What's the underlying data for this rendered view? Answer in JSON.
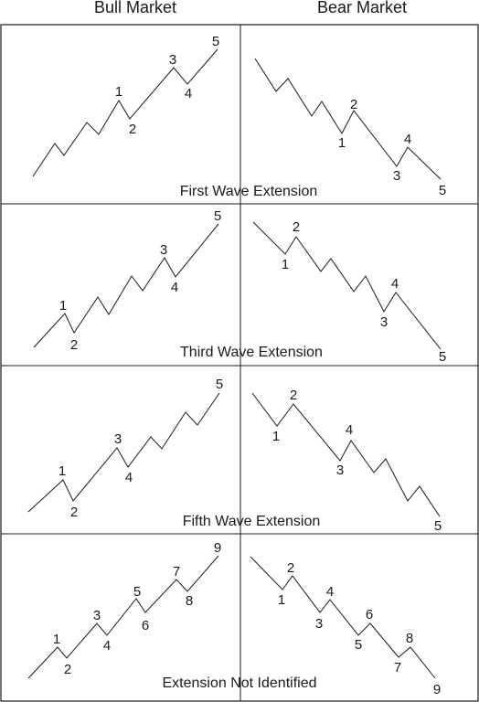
{
  "headers": {
    "bull": "Bull Market",
    "bear": "Bear Market"
  },
  "panels": [
    {
      "caption": "First Wave Extension",
      "bull_labels": [
        "1",
        "2",
        "3",
        "4",
        "5"
      ],
      "bear_labels": [
        "1",
        "2",
        "3",
        "4",
        "5"
      ]
    },
    {
      "caption": "Third Wave Extension",
      "bull_labels": [
        "1",
        "2",
        "3",
        "4",
        "5"
      ],
      "bear_labels": [
        "1",
        "2",
        "3",
        "4",
        "5"
      ]
    },
    {
      "caption": "Fifth Wave Extension",
      "bull_labels": [
        "1",
        "2",
        "3",
        "4",
        "5"
      ],
      "bear_labels": [
        "1",
        "2",
        "3",
        "4",
        "5"
      ]
    },
    {
      "caption": "Extension Not Identified",
      "bull_labels": [
        "1",
        "2",
        "3",
        "4",
        "5",
        "6",
        "7",
        "8",
        "9"
      ],
      "bear_labels": [
        "1",
        "2",
        "3",
        "4",
        "5",
        "6",
        "7",
        "8",
        "9"
      ]
    }
  ]
}
